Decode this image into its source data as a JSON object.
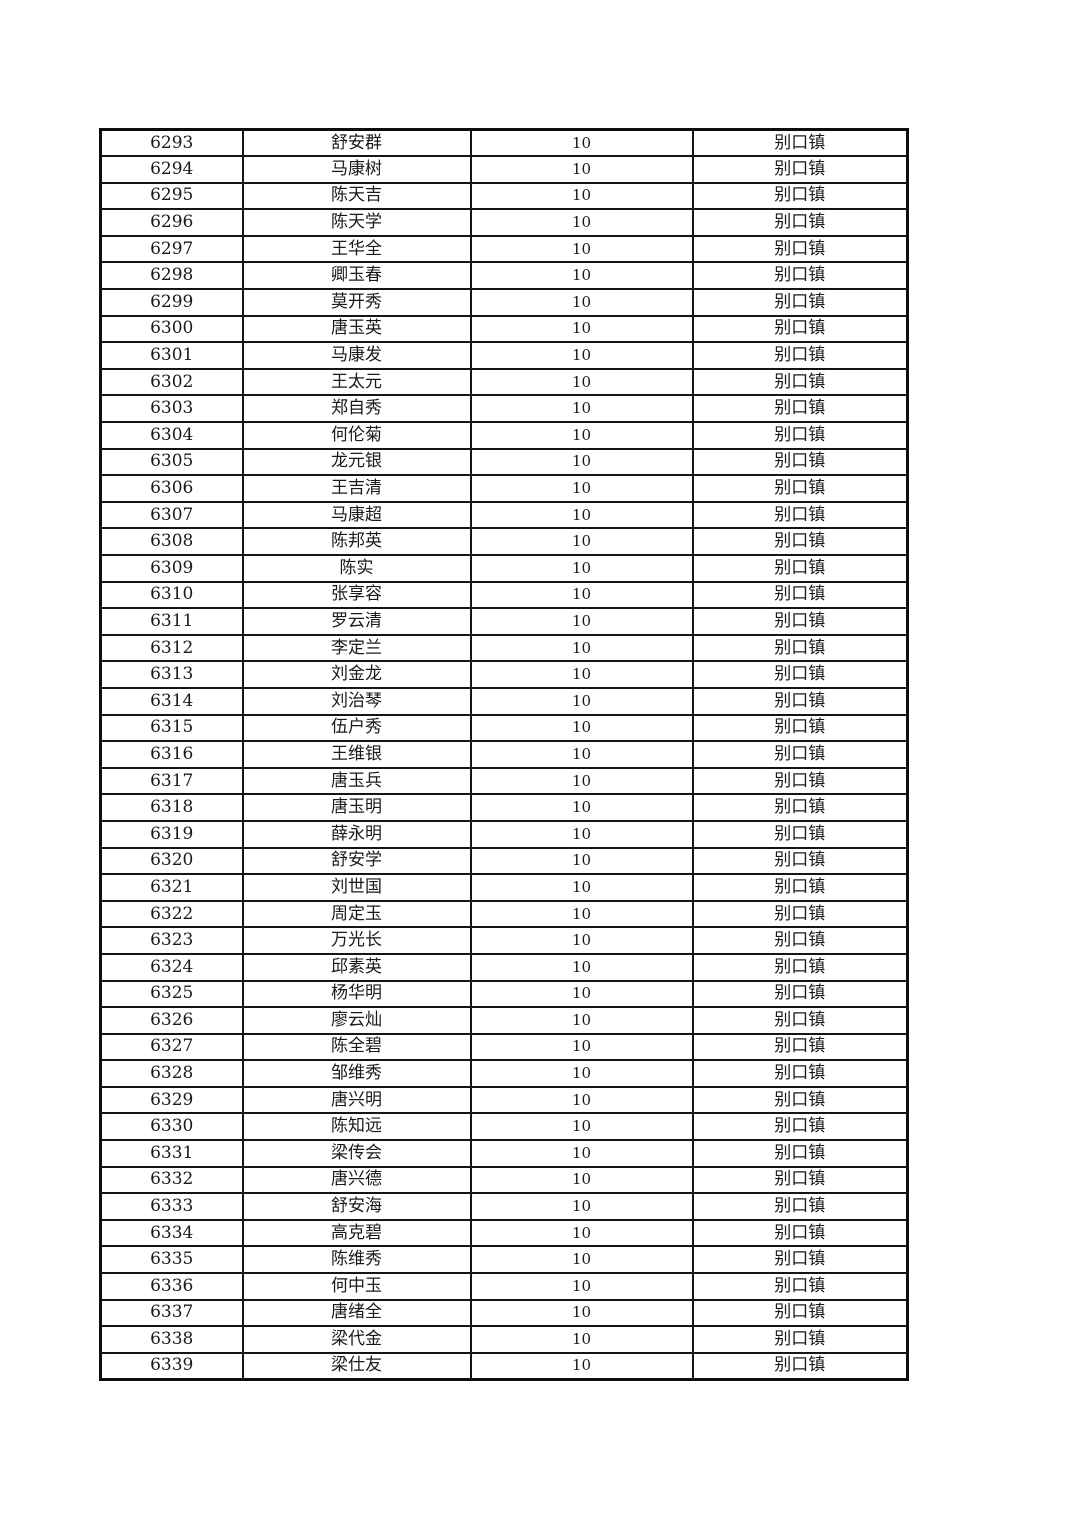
{
  "table": {
    "rows": [
      {
        "index": "6293",
        "name": "舒安群",
        "amount": "10",
        "town": "别口镇"
      },
      {
        "index": "6294",
        "name": "马康树",
        "amount": "10",
        "town": "别口镇"
      },
      {
        "index": "6295",
        "name": "陈天吉",
        "amount": "10",
        "town": "别口镇"
      },
      {
        "index": "6296",
        "name": "陈天学",
        "amount": "10",
        "town": "别口镇"
      },
      {
        "index": "6297",
        "name": "王华全",
        "amount": "10",
        "town": "别口镇"
      },
      {
        "index": "6298",
        "name": "卿玉春",
        "amount": "10",
        "town": "别口镇"
      },
      {
        "index": "6299",
        "name": "莫开秀",
        "amount": "10",
        "town": "别口镇"
      },
      {
        "index": "6300",
        "name": "唐玉英",
        "amount": "10",
        "town": "别口镇"
      },
      {
        "index": "6301",
        "name": "马康发",
        "amount": "10",
        "town": "别口镇"
      },
      {
        "index": "6302",
        "name": "王太元",
        "amount": "10",
        "town": "别口镇"
      },
      {
        "index": "6303",
        "name": "郑自秀",
        "amount": "10",
        "town": "别口镇"
      },
      {
        "index": "6304",
        "name": "何伦菊",
        "amount": "10",
        "town": "别口镇"
      },
      {
        "index": "6305",
        "name": "龙元银",
        "amount": "10",
        "town": "别口镇"
      },
      {
        "index": "6306",
        "name": "王吉清",
        "amount": "10",
        "town": "别口镇"
      },
      {
        "index": "6307",
        "name": "马康超",
        "amount": "10",
        "town": "别口镇"
      },
      {
        "index": "6308",
        "name": "陈邦英",
        "amount": "10",
        "town": "别口镇"
      },
      {
        "index": "6309",
        "name": "陈实",
        "amount": "10",
        "town": "别口镇"
      },
      {
        "index": "6310",
        "name": "张享容",
        "amount": "10",
        "town": "别口镇"
      },
      {
        "index": "6311",
        "name": "罗云清",
        "amount": "10",
        "town": "别口镇"
      },
      {
        "index": "6312",
        "name": "李定兰",
        "amount": "10",
        "town": "别口镇"
      },
      {
        "index": "6313",
        "name": "刘金龙",
        "amount": "10",
        "town": "别口镇"
      },
      {
        "index": "6314",
        "name": "刘治琴",
        "amount": "10",
        "town": "别口镇"
      },
      {
        "index": "6315",
        "name": "伍户秀",
        "amount": "10",
        "town": "别口镇"
      },
      {
        "index": "6316",
        "name": "王维银",
        "amount": "10",
        "town": "别口镇"
      },
      {
        "index": "6317",
        "name": "唐玉兵",
        "amount": "10",
        "town": "别口镇"
      },
      {
        "index": "6318",
        "name": "唐玉明",
        "amount": "10",
        "town": "别口镇"
      },
      {
        "index": "6319",
        "name": "薛永明",
        "amount": "10",
        "town": "别口镇"
      },
      {
        "index": "6320",
        "name": "舒安学",
        "amount": "10",
        "town": "别口镇"
      },
      {
        "index": "6321",
        "name": "刘世国",
        "amount": "10",
        "town": "别口镇"
      },
      {
        "index": "6322",
        "name": "周定玉",
        "amount": "10",
        "town": "别口镇"
      },
      {
        "index": "6323",
        "name": "万光长",
        "amount": "10",
        "town": "别口镇"
      },
      {
        "index": "6324",
        "name": "邱素英",
        "amount": "10",
        "town": "别口镇"
      },
      {
        "index": "6325",
        "name": "杨华明",
        "amount": "10",
        "town": "别口镇"
      },
      {
        "index": "6326",
        "name": "廖云灿",
        "amount": "10",
        "town": "别口镇"
      },
      {
        "index": "6327",
        "name": "陈全碧",
        "amount": "10",
        "town": "别口镇"
      },
      {
        "index": "6328",
        "name": "邹维秀",
        "amount": "10",
        "town": "别口镇"
      },
      {
        "index": "6329",
        "name": "唐兴明",
        "amount": "10",
        "town": "别口镇"
      },
      {
        "index": "6330",
        "name": "陈知远",
        "amount": "10",
        "town": "别口镇"
      },
      {
        "index": "6331",
        "name": "梁传会",
        "amount": "10",
        "town": "别口镇"
      },
      {
        "index": "6332",
        "name": "唐兴德",
        "amount": "10",
        "town": "别口镇"
      },
      {
        "index": "6333",
        "name": "舒安海",
        "amount": "10",
        "town": "别口镇"
      },
      {
        "index": "6334",
        "name": "高克碧",
        "amount": "10",
        "town": "别口镇"
      },
      {
        "index": "6335",
        "name": "陈维秀",
        "amount": "10",
        "town": "别口镇"
      },
      {
        "index": "6336",
        "name": "何中玉",
        "amount": "10",
        "town": "别口镇"
      },
      {
        "index": "6337",
        "name": "唐绪全",
        "amount": "10",
        "town": "别口镇"
      },
      {
        "index": "6338",
        "name": "梁代金",
        "amount": "10",
        "town": "别口镇"
      },
      {
        "index": "6339",
        "name": "梁仕友",
        "amount": "10",
        "town": "别口镇"
      }
    ]
  }
}
